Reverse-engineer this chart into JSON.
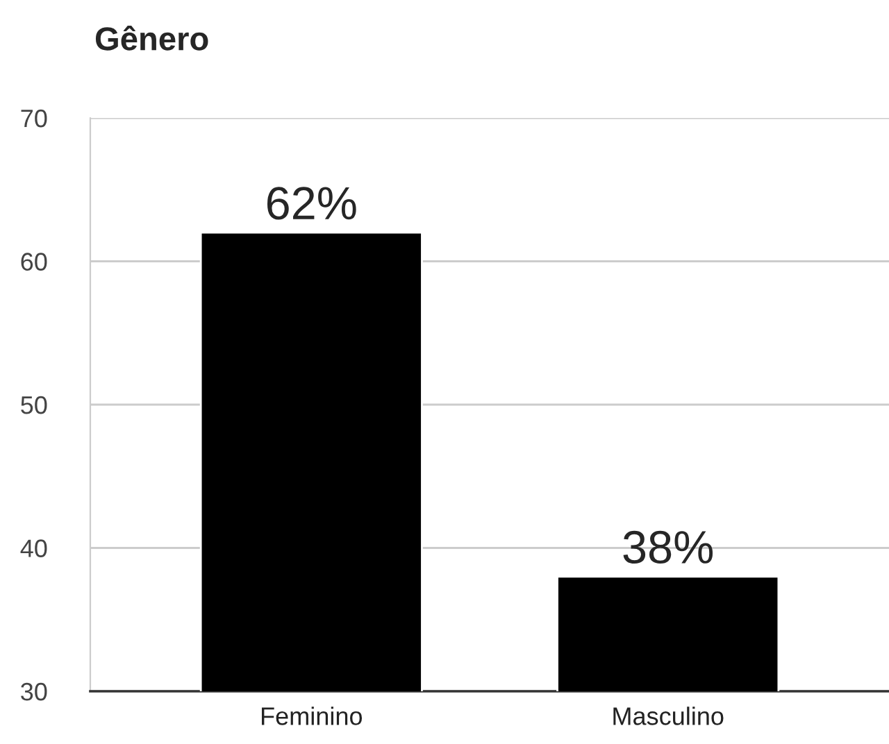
{
  "chart_data": {
    "type": "bar",
    "title": "Gênero",
    "categories": [
      "Feminino",
      "Masculino"
    ],
    "values": [
      62,
      38
    ],
    "color": "#000000",
    "value_labels": [
      "62%",
      "38%"
    ],
    "ylim": [
      30,
      70
    ],
    "yticks": [
      30,
      40,
      50,
      60,
      70
    ],
    "grid": "y"
  }
}
